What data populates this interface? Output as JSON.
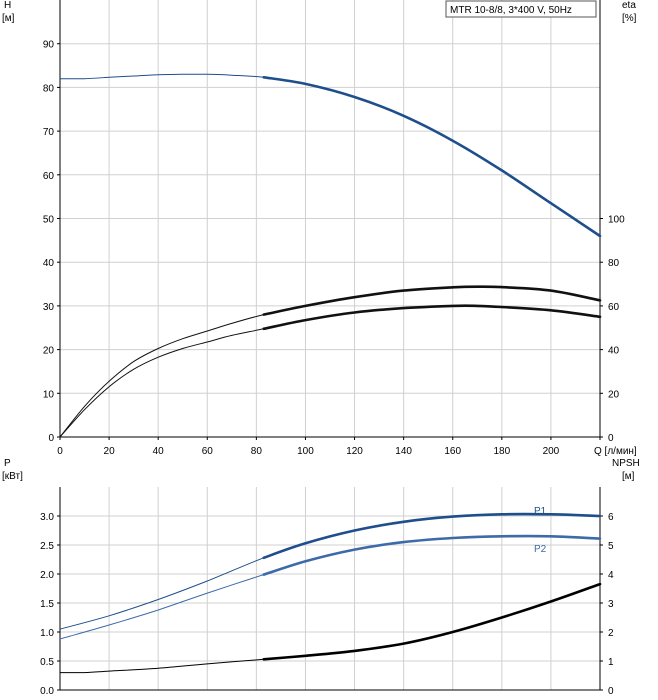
{
  "legend_text": "MTR 10-8/8, 3*400 V, 50Hz",
  "chart_data": [
    {
      "type": "line",
      "panel": "head-efficiency",
      "legend": "MTR 10-8/8, 3*400 V, 50Hz",
      "left_axis": {
        "name": "H",
        "unit": "[м]",
        "range": [
          0,
          100
        ],
        "ticks": [
          "0",
          "10",
          "20",
          "30",
          "40",
          "50",
          "60",
          "70",
          "80",
          "90"
        ]
      },
      "right_axis": {
        "name": "eta",
        "unit": "[%]",
        "range": [
          0,
          200
        ],
        "ticks": [
          "0",
          "20",
          "40",
          "60",
          "80",
          "100"
        ]
      },
      "x_axis": {
        "unit": "Q [л/мин]",
        "range": [
          0,
          220
        ],
        "ticks": [
          "0",
          "20",
          "40",
          "60",
          "80",
          "100",
          "120",
          "140",
          "160",
          "180",
          "200",
          "Q [л/мин]"
        ]
      },
      "grid": true,
      "colors": {
        "head": "#1f4e8c",
        "efficiency": "#111111",
        "grid": "#d0d0d0"
      },
      "series": [
        {
          "name": "H",
          "axis": "left",
          "color": "#1f4e8c",
          "x": [
            0,
            10,
            20,
            30,
            40,
            50,
            60,
            70,
            83,
            100,
            120,
            140,
            160,
            180,
            200,
            220
          ],
          "y": [
            82,
            82,
            82.3,
            82.6,
            82.9,
            83,
            83,
            82.8,
            82.3,
            80.8,
            77.8,
            73.5,
            67.8,
            61,
            53.5,
            46
          ]
        },
        {
          "name": "eta-upper",
          "axis": "right",
          "color": "#111111",
          "x": [
            0,
            10,
            20,
            30,
            40,
            50,
            60,
            70,
            83,
            100,
            120,
            140,
            160,
            170,
            180,
            200,
            220
          ],
          "y": [
            0,
            14,
            25.5,
            34.5,
            40.5,
            45,
            48.5,
            52,
            56,
            60,
            64,
            67,
            68.5,
            68.8,
            68.6,
            67,
            62.5
          ]
        },
        {
          "name": "eta-lower",
          "axis": "right",
          "color": "#111111",
          "x": [
            0,
            10,
            20,
            30,
            40,
            50,
            60,
            70,
            83,
            100,
            120,
            140,
            160,
            170,
            180,
            200,
            220
          ],
          "y": [
            0,
            12.5,
            23,
            31,
            36.5,
            40.5,
            43.5,
            46.5,
            49.5,
            53.5,
            57,
            59,
            60,
            60,
            59.5,
            58,
            55
          ]
        }
      ]
    },
    {
      "type": "line",
      "panel": "power-npsh",
      "left_axis": {
        "name": "P",
        "unit": "[кВт]",
        "range": [
          0,
          3.5
        ],
        "ticks": [
          "0.0",
          "0.5",
          "1.0",
          "1.5",
          "2.0",
          "2.5",
          "3.0"
        ]
      },
      "right_axis": {
        "name": "NPSH",
        "unit": "[м]",
        "range": [
          0,
          7
        ],
        "ticks": [
          "0",
          "1",
          "2",
          "3",
          "4",
          "5",
          "6"
        ]
      },
      "x_axis": {
        "range": [
          0,
          220
        ]
      },
      "grid": true,
      "colors": {
        "p1": "#1f4e8c",
        "p2": "#3d6aa8",
        "npsh": "#000000",
        "grid": "#d0d0d0"
      },
      "series": [
        {
          "name": "P1",
          "axis": "left",
          "color": "#1f4e8c",
          "x": [
            0,
            20,
            40,
            60,
            83,
            100,
            120,
            140,
            160,
            180,
            200,
            220
          ],
          "y": [
            1.05,
            1.28,
            1.56,
            1.88,
            2.28,
            2.53,
            2.75,
            2.9,
            2.99,
            3.03,
            3.03,
            3.0
          ]
        },
        {
          "name": "P2",
          "axis": "left",
          "color": "#3d6aa8",
          "x": [
            0,
            20,
            40,
            60,
            83,
            100,
            120,
            140,
            160,
            180,
            200,
            220
          ],
          "y": [
            0.88,
            1.12,
            1.38,
            1.67,
            1.99,
            2.22,
            2.42,
            2.55,
            2.62,
            2.65,
            2.65,
            2.61
          ]
        },
        {
          "name": "NPSH",
          "axis": "right",
          "color": "#000000",
          "x": [
            0,
            10,
            20,
            40,
            60,
            83,
            100,
            120,
            140,
            160,
            180,
            200,
            220
          ],
          "y": [
            0.6,
            0.6,
            0.65,
            0.75,
            0.9,
            1.06,
            1.18,
            1.35,
            1.6,
            2.0,
            2.5,
            3.05,
            3.65
          ]
        }
      ]
    }
  ]
}
